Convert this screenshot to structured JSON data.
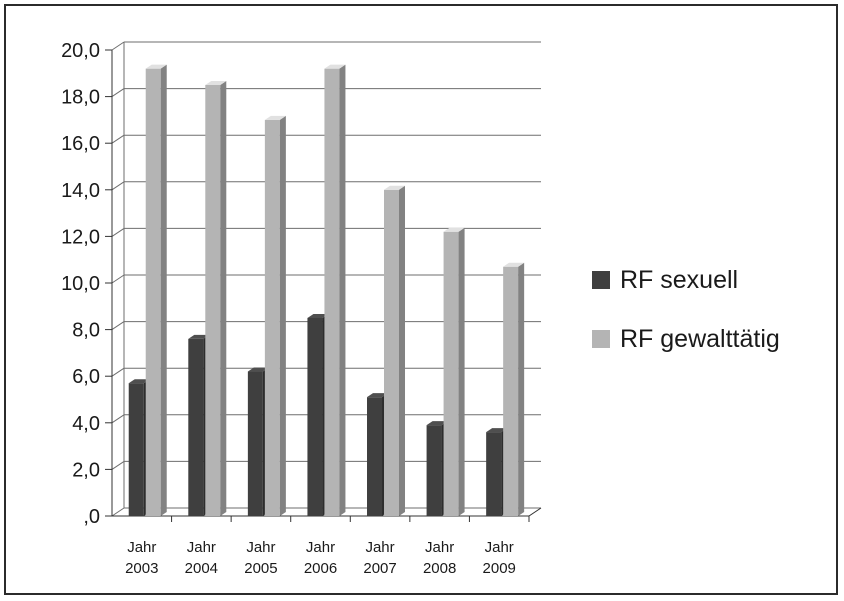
{
  "chart_data": {
    "type": "bar",
    "categories": [
      [
        "Jahr",
        "2003"
      ],
      [
        "Jahr",
        "2004"
      ],
      [
        "Jahr",
        "2005"
      ],
      [
        "Jahr",
        "2006"
      ],
      [
        "Jahr",
        "2007"
      ],
      [
        "Jahr",
        "2008"
      ],
      [
        "Jahr",
        "2009"
      ]
    ],
    "series": [
      {
        "name": "RF sexuell",
        "color": "#3f3f3f",
        "values": [
          5.7,
          7.6,
          6.2,
          8.5,
          5.1,
          3.9,
          3.6
        ]
      },
      {
        "name": "RF gewalttätig",
        "color": "#b4b4b4",
        "values": [
          19.2,
          18.5,
          17.0,
          19.2,
          14.0,
          12.2,
          10.7
        ]
      }
    ],
    "ylim": [
      0,
      20
    ],
    "yticks": [
      ",0",
      "2,0",
      "4,0",
      "6,0",
      "8,0",
      "10,0",
      "12,0",
      "14,0",
      "16,0",
      "18,0",
      "20,0"
    ],
    "grid": true,
    "legend_position": "right",
    "three_d": true
  }
}
